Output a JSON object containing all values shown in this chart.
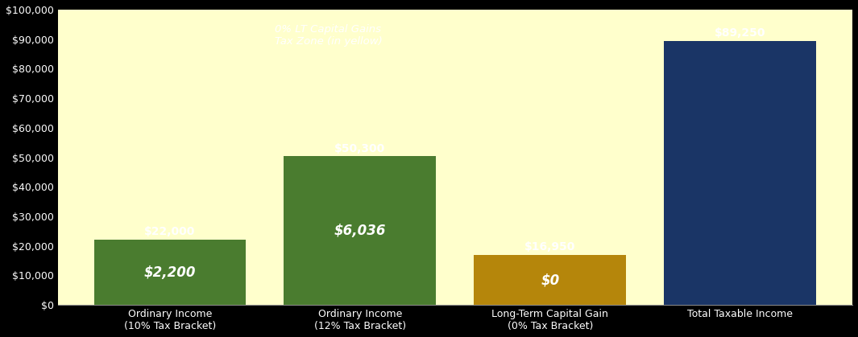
{
  "categories": [
    "Ordinary Income\n(10% Tax Bracket)",
    "Ordinary Income\n(12% Tax Bracket)",
    "Long-Term Capital Gain\n(0% Tax Bracket)",
    "Total Taxable Income"
  ],
  "bar_values": [
    22000,
    50300,
    16950,
    89250
  ],
  "bar_colors": [
    "#4a7c2f",
    "#4a7c2f",
    "#b5860b",
    "#1a3566"
  ],
  "tax_labels": [
    "$2,200",
    "$6,036",
    "$0",
    ""
  ],
  "top_labels": [
    "$22,000",
    "$50,300",
    "$16,950",
    "$89,250"
  ],
  "ylim": [
    0,
    100000
  ],
  "yticks": [
    0,
    10000,
    20000,
    30000,
    40000,
    50000,
    60000,
    70000,
    80000,
    90000,
    100000
  ],
  "ytick_labels": [
    "$0",
    "$10,000",
    "$20,000",
    "$30,000",
    "$40,000",
    "$50,000",
    "$60,000",
    "$70,000",
    "$80,000",
    "$90,000",
    "$100,000"
  ],
  "plot_bg_color": "#ffffcc",
  "figure_bg": "#000000",
  "ytick_color": "#ffffff",
  "xtick_color": "#ffffff",
  "annotation_text": "0% LT Capital Gains\nTax Zone (in yellow)",
  "bar_width": 0.8
}
